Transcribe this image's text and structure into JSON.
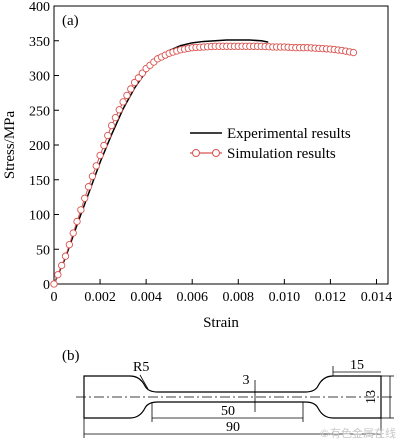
{
  "chart_data": {
    "type": "line",
    "panel_label": "(a)",
    "xlabel": "Strain",
    "ylabel": "Stress/MPa",
    "xlim": [
      0,
      0.0145
    ],
    "ylim": [
      0,
      400
    ],
    "x_ticks": [
      0,
      0.002,
      0.004,
      0.006,
      0.008,
      0.01,
      0.012,
      0.014
    ],
    "x_tick_labels": [
      "0",
      "0.002",
      "0.004",
      "0.006",
      "0.008",
      "0.010",
      "0.012",
      "0.014"
    ],
    "y_ticks": [
      0,
      50,
      100,
      150,
      200,
      250,
      300,
      350,
      400
    ],
    "y_tick_labels": [
      "0",
      "50",
      "100",
      "150",
      "200",
      "250",
      "300",
      "350",
      "400"
    ],
    "grid": false,
    "legend_position": "right-middle",
    "series": [
      {
        "name": "Experimental results",
        "color": "#000000",
        "marker": "none",
        "x": [
          0,
          0.0005,
          0.001,
          0.0015,
          0.002,
          0.0025,
          0.003,
          0.0035,
          0.004,
          0.0045,
          0.005,
          0.0055,
          0.006,
          0.0065,
          0.007,
          0.0075,
          0.008,
          0.0085,
          0.009,
          0.0093
        ],
        "y": [
          0,
          38,
          85,
          130,
          175,
          215,
          252,
          282,
          306,
          324,
          336,
          343,
          347,
          349,
          350,
          351,
          351,
          351,
          350,
          348
        ]
      },
      {
        "name": "Simulation results",
        "color": "#d9534f",
        "marker": "circle",
        "x": [
          0,
          0.0005,
          0.001,
          0.0015,
          0.002,
          0.0025,
          0.003,
          0.0035,
          0.004,
          0.0045,
          0.005,
          0.0055,
          0.006,
          0.0065,
          0.007,
          0.0075,
          0.008,
          0.0085,
          0.009,
          0.0095,
          0.01,
          0.0105,
          0.011,
          0.0115,
          0.012,
          0.0125,
          0.013
        ],
        "y": [
          0,
          40,
          90,
          140,
          185,
          228,
          262,
          290,
          310,
          324,
          332,
          337,
          340,
          341,
          342,
          342,
          342,
          342,
          342,
          341,
          341,
          340,
          340,
          339,
          338,
          336,
          333
        ]
      }
    ]
  },
  "specimen": {
    "panel_label": "(b)",
    "dim_radius": "R5",
    "dim_grip_length": "15",
    "dim_gauge_width": "3",
    "dim_grip_width": "13",
    "dim_gauge_length": "50",
    "dim_total_length": "90"
  },
  "watermark": "©有色金属在线"
}
